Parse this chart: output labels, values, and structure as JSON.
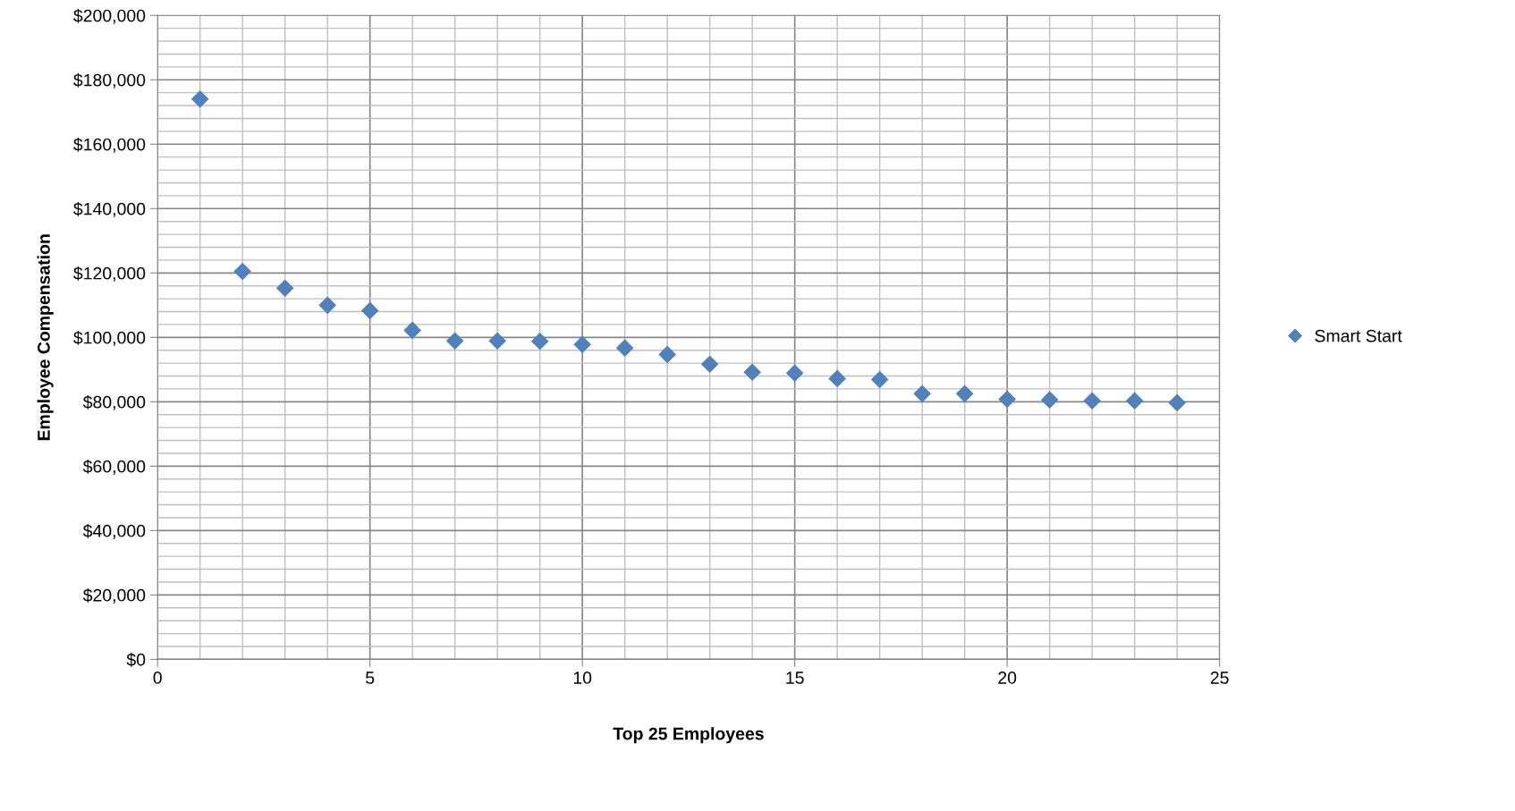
{
  "chart_data": {
    "type": "scatter",
    "xlabel": "Top 25 Employees",
    "ylabel": "Employee Compensation",
    "x": [
      1,
      2,
      3,
      4,
      5,
      6,
      7,
      8,
      9,
      10,
      11,
      12,
      13,
      14,
      15,
      16,
      17,
      18,
      19,
      20,
      21,
      22,
      23,
      24
    ],
    "series": [
      {
        "name": "Smart Start",
        "color": "#4f81bd",
        "values": [
          174000,
          120500,
          115300,
          110000,
          108300,
          102200,
          98900,
          98900,
          98800,
          97800,
          96700,
          94700,
          91700,
          89200,
          88900,
          87200,
          86900,
          82500,
          82500,
          80800,
          80600,
          80300,
          80300,
          79700
        ]
      }
    ],
    "xlim": [
      0,
      25
    ],
    "xticks": [
      0,
      5,
      10,
      15,
      20,
      25
    ],
    "ylim": [
      0,
      200000
    ],
    "yticks": [
      {
        "value": 0,
        "label": "$0"
      },
      {
        "value": 20000,
        "label": "$20,000"
      },
      {
        "value": 40000,
        "label": "$40,000"
      },
      {
        "value": 60000,
        "label": "$60,000"
      },
      {
        "value": 80000,
        "label": "$80,000"
      },
      {
        "value": 100000,
        "label": "$100,000"
      },
      {
        "value": 120000,
        "label": "$120,000"
      },
      {
        "value": 140000,
        "label": "$140,000"
      },
      {
        "value": 160000,
        "label": "$160,000"
      },
      {
        "value": 180000,
        "label": "$180,000"
      },
      {
        "value": 200000,
        "label": "$200,000"
      }
    ],
    "grid": true,
    "legend": "right",
    "marker": "diamond"
  }
}
